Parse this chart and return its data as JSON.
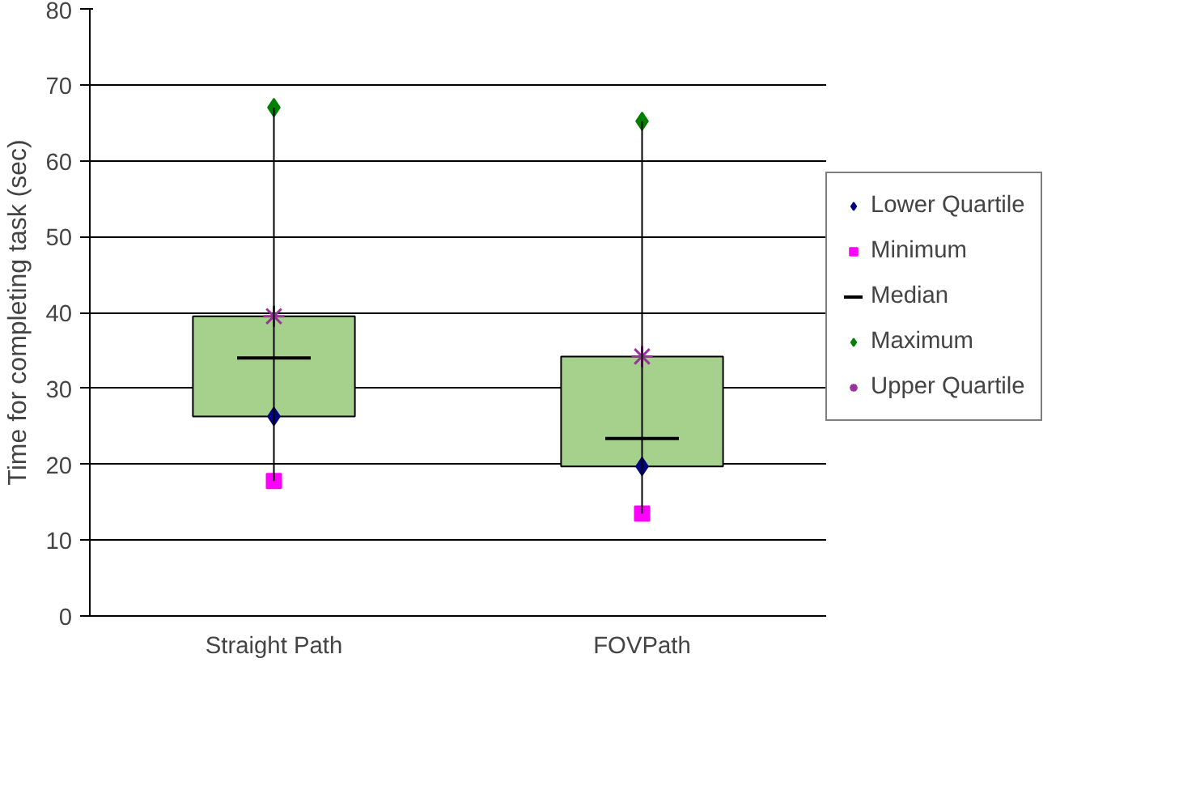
{
  "chart_data": {
    "type": "box",
    "ylabel": "Time for completing task (sec)",
    "categories": [
      "Straight Path",
      "FOVPath"
    ],
    "color": "#a6d18c",
    "series": [
      {
        "name": "Lower Quartile",
        "type": "scatter",
        "marker": "diamond",
        "color": "#000080",
        "values": [
          26.3,
          19.7
        ]
      },
      {
        "name": "Minimum",
        "type": "scatter",
        "marker": "square",
        "color": "#ff00ff",
        "values": [
          17.8,
          13.5
        ]
      },
      {
        "name": "Median",
        "color": "#000000",
        "boxes": [
          {
            "low": 17.8,
            "q1": 26.3,
            "median": 34,
            "q3": 39.5,
            "high": 67
          },
          {
            "low": 13.5,
            "q1": 19.7,
            "median": 23.4,
            "q3": 34.2,
            "high": 65.2
          }
        ]
      },
      {
        "name": "Maximum",
        "type": "scatter",
        "marker": "diamond",
        "color": "#008000",
        "values": [
          67,
          65.2
        ]
      },
      {
        "name": "Upper Quartile",
        "type": "scatter",
        "marker": "cross",
        "color": "#993399",
        "values": [
          39.5,
          34.2
        ]
      }
    ],
    "ylim": [
      0,
      80
    ],
    "yticks": [
      0,
      10,
      20,
      30,
      40,
      50,
      60,
      70,
      80
    ],
    "grid": "y",
    "legend": "right"
  }
}
